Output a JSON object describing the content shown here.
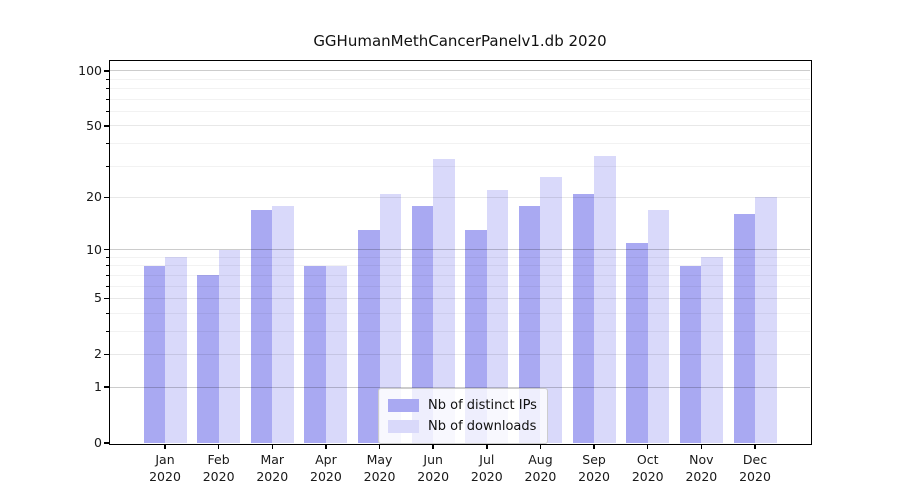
{
  "chart_data": {
    "type": "bar",
    "title": "GGHumanMethCancerPanelv1.db 2020",
    "scale": "log1p",
    "categories": [
      "Jan",
      "Feb",
      "Mar",
      "Apr",
      "May",
      "Jun",
      "Jul",
      "Aug",
      "Sep",
      "Oct",
      "Nov",
      "Dec"
    ],
    "x_year_label": "2020",
    "series": [
      {
        "name": "Nb of distinct IPs",
        "color": "#a9a9f2",
        "values": [
          8,
          7,
          17,
          8,
          13,
          18,
          13,
          18,
          21,
          11,
          8,
          16
        ]
      },
      {
        "name": "Nb of downloads",
        "color": "#d9d9fa",
        "values": [
          9,
          10,
          18,
          8,
          21,
          33,
          22,
          26,
          34,
          17,
          9,
          20
        ]
      }
    ],
    "y_ticks": [
      0,
      1,
      2,
      5,
      10,
      20,
      50,
      100
    ],
    "gridlines": {
      "strong": [
        1,
        10,
        100
      ],
      "mid": [
        2,
        5,
        20,
        50
      ],
      "faint": [
        3,
        4,
        6,
        7,
        8,
        9,
        30,
        40,
        60,
        70,
        80,
        90
      ]
    },
    "ylim": [
      0,
      113
    ],
    "legend_position": "lower center",
    "grid": "on"
  }
}
